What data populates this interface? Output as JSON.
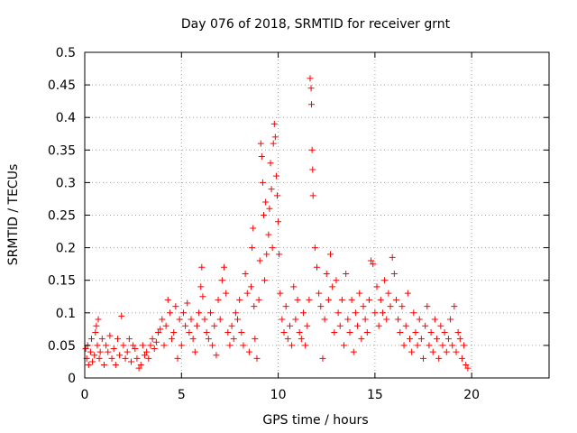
{
  "chart_data": {
    "type": "scatter",
    "title": "Day 076 of 2018, SRMTID for receiver grnt",
    "xlabel": "GPS time / hours",
    "ylabel": "SRMTID / TECUs",
    "xlim": [
      0,
      24
    ],
    "ylim": [
      0,
      0.5
    ],
    "xticks": [
      0,
      5,
      10,
      15,
      20
    ],
    "yticks": [
      0,
      0.05,
      0.1,
      0.15,
      0.2,
      0.25,
      0.3,
      0.35,
      0.4,
      0.45,
      0.5
    ],
    "xtick_labels": [
      "0",
      "5",
      "10",
      "15",
      "20"
    ],
    "ytick_labels": [
      "0",
      "0.05",
      "0.1",
      "0.15",
      "0.2",
      "0.25",
      "0.3",
      "0.35",
      "0.4",
      "0.45",
      "0.5"
    ],
    "grid": true,
    "marker": "+",
    "color": "#ff0000",
    "series": [
      {
        "name": "SRMTID",
        "points": [
          [
            0.05,
            0.045
          ],
          [
            0.1,
            0.03
          ],
          [
            0.15,
            0.05
          ],
          [
            0.2,
            0.02
          ],
          [
            0.3,
            0.04
          ],
          [
            0.35,
            0.06
          ],
          [
            0.4,
            0.025
          ],
          [
            0.5,
            0.035
          ],
          [
            0.55,
            0.07
          ],
          [
            0.6,
            0.08
          ],
          [
            0.65,
            0.05
          ],
          [
            0.7,
            0.09
          ],
          [
            0.75,
            0.03
          ],
          [
            0.8,
            0.04
          ],
          [
            0.9,
            0.06
          ],
          [
            1.0,
            0.02
          ],
          [
            1.1,
            0.05
          ],
          [
            1.2,
            0.04
          ],
          [
            1.3,
            0.065
          ],
          [
            1.4,
            0.03
          ],
          [
            1.5,
            0.045
          ],
          [
            1.6,
            0.02
          ],
          [
            1.7,
            0.06
          ],
          [
            1.8,
            0.035
          ],
          [
            1.9,
            0.095
          ],
          [
            2.0,
            0.05
          ],
          [
            2.1,
            0.03
          ],
          [
            2.2,
            0.04
          ],
          [
            2.3,
            0.06
          ],
          [
            2.4,
            0.025
          ],
          [
            2.5,
            0.05
          ],
          [
            2.6,
            0.045
          ],
          [
            2.7,
            0.03
          ],
          [
            2.8,
            0.015
          ],
          [
            2.9,
            0.02
          ],
          [
            3.0,
            0.05
          ],
          [
            3.1,
            0.035
          ],
          [
            3.2,
            0.04
          ],
          [
            3.3,
            0.03
          ],
          [
            3.4,
            0.05
          ],
          [
            3.5,
            0.06
          ],
          [
            3.6,
            0.045
          ],
          [
            3.7,
            0.055
          ],
          [
            3.8,
            0.07
          ],
          [
            3.9,
            0.075
          ],
          [
            4.0,
            0.09
          ],
          [
            4.1,
            0.05
          ],
          [
            4.2,
            0.08
          ],
          [
            4.3,
            0.12
          ],
          [
            4.4,
            0.1
          ],
          [
            4.5,
            0.06
          ],
          [
            4.6,
            0.07
          ],
          [
            4.7,
            0.11
          ],
          [
            4.8,
            0.03
          ],
          [
            4.9,
            0.09
          ],
          [
            5.0,
            0.05
          ],
          [
            5.1,
            0.1
          ],
          [
            5.2,
            0.08
          ],
          [
            5.3,
            0.115
          ],
          [
            5.4,
            0.07
          ],
          [
            5.5,
            0.09
          ],
          [
            5.6,
            0.06
          ],
          [
            5.7,
            0.04
          ],
          [
            5.8,
            0.08
          ],
          [
            5.9,
            0.1
          ],
          [
            6.0,
            0.14
          ],
          [
            6.05,
            0.17
          ],
          [
            6.1,
            0.125
          ],
          [
            6.2,
            0.09
          ],
          [
            6.3,
            0.07
          ],
          [
            6.4,
            0.06
          ],
          [
            6.5,
            0.1
          ],
          [
            6.6,
            0.05
          ],
          [
            6.7,
            0.08
          ],
          [
            6.8,
            0.035
          ],
          [
            6.9,
            0.12
          ],
          [
            7.0,
            0.09
          ],
          [
            7.1,
            0.15
          ],
          [
            7.2,
            0.17
          ],
          [
            7.3,
            0.13
          ],
          [
            7.4,
            0.07
          ],
          [
            7.5,
            0.05
          ],
          [
            7.6,
            0.08
          ],
          [
            7.7,
            0.06
          ],
          [
            7.8,
            0.1
          ],
          [
            7.9,
            0.09
          ],
          [
            8.0,
            0.12
          ],
          [
            8.1,
            0.07
          ],
          [
            8.2,
            0.05
          ],
          [
            8.3,
            0.16
          ],
          [
            8.4,
            0.13
          ],
          [
            8.5,
            0.04
          ],
          [
            8.6,
            0.14
          ],
          [
            8.65,
            0.2
          ],
          [
            8.7,
            0.23
          ],
          [
            8.75,
            0.11
          ],
          [
            8.8,
            0.06
          ],
          [
            8.9,
            0.03
          ],
          [
            9.0,
            0.12
          ],
          [
            9.05,
            0.18
          ],
          [
            9.1,
            0.36
          ],
          [
            9.15,
            0.34
          ],
          [
            9.2,
            0.3
          ],
          [
            9.25,
            0.25
          ],
          [
            9.3,
            0.15
          ],
          [
            9.35,
            0.27
          ],
          [
            9.4,
            0.19
          ],
          [
            9.5,
            0.22
          ],
          [
            9.55,
            0.26
          ],
          [
            9.6,
            0.33
          ],
          [
            9.65,
            0.29
          ],
          [
            9.7,
            0.2
          ],
          [
            9.75,
            0.36
          ],
          [
            9.8,
            0.39
          ],
          [
            9.85,
            0.37
          ],
          [
            9.9,
            0.31
          ],
          [
            9.95,
            0.28
          ],
          [
            10.0,
            0.24
          ],
          [
            10.05,
            0.19
          ],
          [
            10.1,
            0.13
          ],
          [
            10.2,
            0.09
          ],
          [
            10.3,
            0.07
          ],
          [
            10.4,
            0.11
          ],
          [
            10.5,
            0.06
          ],
          [
            10.6,
            0.08
          ],
          [
            10.7,
            0.05
          ],
          [
            10.8,
            0.14
          ],
          [
            10.9,
            0.09
          ],
          [
            11.0,
            0.12
          ],
          [
            11.1,
            0.07
          ],
          [
            11.2,
            0.06
          ],
          [
            11.3,
            0.1
          ],
          [
            11.4,
            0.05
          ],
          [
            11.5,
            0.08
          ],
          [
            11.6,
            0.12
          ],
          [
            11.65,
            0.46
          ],
          [
            11.7,
            0.445
          ],
          [
            11.72,
            0.42
          ],
          [
            11.75,
            0.35
          ],
          [
            11.78,
            0.32
          ],
          [
            11.8,
            0.28
          ],
          [
            11.9,
            0.2
          ],
          [
            12.0,
            0.17
          ],
          [
            12.1,
            0.13
          ],
          [
            12.2,
            0.11
          ],
          [
            12.3,
            0.03
          ],
          [
            12.4,
            0.09
          ],
          [
            12.5,
            0.16
          ],
          [
            12.6,
            0.12
          ],
          [
            12.7,
            0.19
          ],
          [
            12.8,
            0.14
          ],
          [
            12.9,
            0.07
          ],
          [
            13.0,
            0.15
          ],
          [
            13.1,
            0.1
          ],
          [
            13.2,
            0.08
          ],
          [
            13.3,
            0.12
          ],
          [
            13.4,
            0.05
          ],
          [
            13.5,
            0.16
          ],
          [
            13.6,
            0.09
          ],
          [
            13.7,
            0.07
          ],
          [
            13.8,
            0.12
          ],
          [
            13.9,
            0.04
          ],
          [
            14.0,
            0.1
          ],
          [
            14.1,
            0.08
          ],
          [
            14.2,
            0.13
          ],
          [
            14.3,
            0.06
          ],
          [
            14.4,
            0.11
          ],
          [
            14.5,
            0.09
          ],
          [
            14.6,
            0.07
          ],
          [
            14.7,
            0.12
          ],
          [
            14.8,
            0.18
          ],
          [
            14.9,
            0.175
          ],
          [
            15.0,
            0.1
          ],
          [
            15.1,
            0.14
          ],
          [
            15.2,
            0.08
          ],
          [
            15.3,
            0.12
          ],
          [
            15.4,
            0.1
          ],
          [
            15.5,
            0.15
          ],
          [
            15.6,
            0.09
          ],
          [
            15.7,
            0.13
          ],
          [
            15.8,
            0.11
          ],
          [
            15.9,
            0.185
          ],
          [
            16.0,
            0.16
          ],
          [
            16.1,
            0.12
          ],
          [
            16.2,
            0.09
          ],
          [
            16.3,
            0.07
          ],
          [
            16.4,
            0.11
          ],
          [
            16.5,
            0.05
          ],
          [
            16.6,
            0.08
          ],
          [
            16.7,
            0.13
          ],
          [
            16.8,
            0.06
          ],
          [
            16.9,
            0.04
          ],
          [
            17.0,
            0.1
          ],
          [
            17.1,
            0.07
          ],
          [
            17.2,
            0.05
          ],
          [
            17.3,
            0.09
          ],
          [
            17.4,
            0.06
          ],
          [
            17.5,
            0.03
          ],
          [
            17.6,
            0.08
          ],
          [
            17.7,
            0.11
          ],
          [
            17.8,
            0.05
          ],
          [
            17.9,
            0.07
          ],
          [
            18.0,
            0.04
          ],
          [
            18.1,
            0.09
          ],
          [
            18.2,
            0.06
          ],
          [
            18.3,
            0.03
          ],
          [
            18.4,
            0.08
          ],
          [
            18.5,
            0.05
          ],
          [
            18.6,
            0.07
          ],
          [
            18.7,
            0.04
          ],
          [
            18.8,
            0.06
          ],
          [
            18.9,
            0.09
          ],
          [
            19.0,
            0.05
          ],
          [
            19.1,
            0.11
          ],
          [
            19.2,
            0.04
          ],
          [
            19.3,
            0.07
          ],
          [
            19.4,
            0.06
          ],
          [
            19.5,
            0.03
          ],
          [
            19.6,
            0.05
          ],
          [
            19.7,
            0.02
          ],
          [
            19.8,
            0.015
          ]
        ]
      }
    ]
  }
}
